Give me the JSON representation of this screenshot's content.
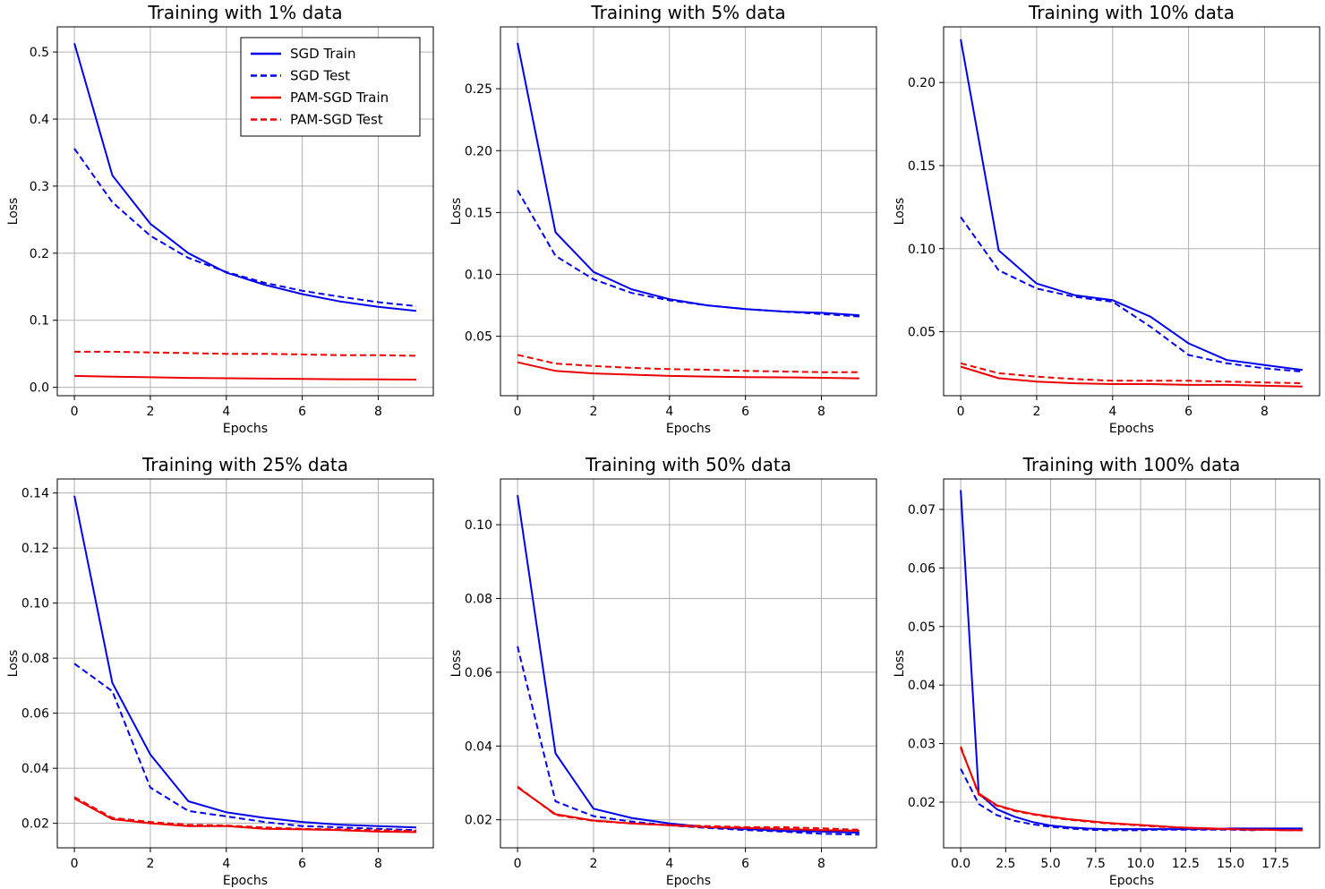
{
  "legend": {
    "entries": [
      {
        "label": "SGD Train",
        "color": "#0000ee",
        "dash": "solid"
      },
      {
        "label": "SGD Test",
        "color": "#0000ee",
        "dash": "dashed"
      },
      {
        "label": "PAM-SGD Train",
        "color": "#ee0000",
        "dash": "solid"
      },
      {
        "label": "PAM-SGD Test",
        "color": "#ee0000",
        "dash": "dashed"
      }
    ],
    "placement": "top-right of first chart"
  },
  "chart_data": [
    {
      "type": "line",
      "title": "Training with 1% data",
      "xlabel": "Epochs",
      "ylabel": "Loss",
      "grid": true,
      "xlim": [
        -0.45,
        9.45
      ],
      "ylim": [
        -0.0125,
        0.5375
      ],
      "xticks": [
        0,
        2,
        4,
        6,
        8
      ],
      "xtick_labels": [
        "0",
        "2",
        "4",
        "6",
        "8"
      ],
      "yticks": [
        0.0,
        0.1,
        0.2,
        0.3,
        0.4,
        0.5
      ],
      "ytick_labels": [
        "0.0",
        "0.1",
        "0.2",
        "0.3",
        "0.4",
        "0.5"
      ],
      "x": [
        0,
        1,
        2,
        3,
        4,
        5,
        6,
        7,
        8,
        9
      ],
      "series": [
        {
          "name": "SGD Train",
          "values": [
            0.513,
            0.316,
            0.244,
            0.2,
            0.171,
            0.153,
            0.139,
            0.128,
            0.12,
            0.114
          ]
        },
        {
          "name": "SGD Test",
          "values": [
            0.356,
            0.276,
            0.226,
            0.193,
            0.172,
            0.156,
            0.144,
            0.135,
            0.127,
            0.121
          ]
        },
        {
          "name": "PAM-SGD Train",
          "values": [
            0.017,
            0.016,
            0.015,
            0.014,
            0.0135,
            0.013,
            0.0125,
            0.012,
            0.0118,
            0.0115
          ]
        },
        {
          "name": "PAM-SGD Test",
          "values": [
            0.053,
            0.053,
            0.052,
            0.051,
            0.05,
            0.05,
            0.049,
            0.048,
            0.048,
            0.047
          ]
        }
      ],
      "show_legend": true
    },
    {
      "type": "line",
      "title": "Training with 5% data",
      "xlabel": "Epochs",
      "ylabel": "Loss",
      "grid": true,
      "xlim": [
        -0.45,
        9.45
      ],
      "ylim": [
        0.002,
        0.3
      ],
      "xticks": [
        0,
        2,
        4,
        6,
        8
      ],
      "xtick_labels": [
        "0",
        "2",
        "4",
        "6",
        "8"
      ],
      "yticks": [
        0.05,
        0.1,
        0.15,
        0.2,
        0.25
      ],
      "ytick_labels": [
        "0.05",
        "0.10",
        "0.15",
        "0.20",
        "0.25"
      ],
      "x": [
        0,
        1,
        2,
        3,
        4,
        5,
        6,
        7,
        8,
        9
      ],
      "series": [
        {
          "name": "SGD Train",
          "values": [
            0.287,
            0.134,
            0.102,
            0.088,
            0.08,
            0.075,
            0.072,
            0.07,
            0.069,
            0.067
          ]
        },
        {
          "name": "SGD Test",
          "values": [
            0.168,
            0.115,
            0.096,
            0.085,
            0.079,
            0.075,
            0.072,
            0.07,
            0.068,
            0.066
          ]
        },
        {
          "name": "PAM-SGD Train",
          "values": [
            0.029,
            0.022,
            0.02,
            0.019,
            0.018,
            0.0175,
            0.017,
            0.0168,
            0.0165,
            0.016
          ]
        },
        {
          "name": "PAM-SGD Test",
          "values": [
            0.035,
            0.028,
            0.026,
            0.0245,
            0.0235,
            0.023,
            0.022,
            0.0215,
            0.021,
            0.021
          ]
        }
      ],
      "show_legend": false
    },
    {
      "type": "line",
      "title": "Training with 10% data",
      "xlabel": "Epochs",
      "ylabel": "Loss",
      "grid": true,
      "xlim": [
        -0.45,
        9.45
      ],
      "ylim": [
        0.0115,
        0.2335
      ],
      "xticks": [
        0,
        2,
        4,
        6,
        8
      ],
      "xtick_labels": [
        "0",
        "2",
        "4",
        "6",
        "8"
      ],
      "yticks": [
        0.05,
        0.1,
        0.15,
        0.2
      ],
      "ytick_labels": [
        "0.05",
        "0.10",
        "0.15",
        "0.20"
      ],
      "x": [
        0,
        1,
        2,
        3,
        4,
        5,
        6,
        7,
        8,
        9
      ],
      "series": [
        {
          "name": "SGD Train",
          "values": [
            0.226,
            0.099,
            0.079,
            0.072,
            0.069,
            0.059,
            0.043,
            0.033,
            0.03,
            0.027
          ]
        },
        {
          "name": "SGD Test",
          "values": [
            0.119,
            0.087,
            0.076,
            0.071,
            0.068,
            0.053,
            0.036,
            0.031,
            0.028,
            0.026
          ]
        },
        {
          "name": "PAM-SGD Train",
          "values": [
            0.029,
            0.022,
            0.02,
            0.019,
            0.0185,
            0.0185,
            0.018,
            0.018,
            0.0175,
            0.017
          ]
        },
        {
          "name": "PAM-SGD Test",
          "values": [
            0.031,
            0.025,
            0.023,
            0.0215,
            0.0205,
            0.0205,
            0.0205,
            0.02,
            0.0195,
            0.019
          ]
        }
      ],
      "show_legend": false
    },
    {
      "type": "line",
      "title": "Training with 25% data",
      "xlabel": "Epochs",
      "ylabel": "Loss",
      "grid": true,
      "xlim": [
        -0.45,
        9.45
      ],
      "ylim": [
        0.0111,
        0.1451
      ],
      "xticks": [
        0,
        2,
        4,
        6,
        8
      ],
      "xtick_labels": [
        "0",
        "2",
        "4",
        "6",
        "8"
      ],
      "yticks": [
        0.02,
        0.04,
        0.06,
        0.08,
        0.1,
        0.12,
        0.14
      ],
      "ytick_labels": [
        "0.02",
        "0.04",
        "0.06",
        "0.08",
        "0.10",
        "0.12",
        "0.14"
      ],
      "x": [
        0,
        1,
        2,
        3,
        4,
        5,
        6,
        7,
        8,
        9
      ],
      "series": [
        {
          "name": "SGD Train",
          "values": [
            0.139,
            0.071,
            0.045,
            0.028,
            0.024,
            0.022,
            0.0205,
            0.0195,
            0.019,
            0.0185
          ]
        },
        {
          "name": "SGD Test",
          "values": [
            0.078,
            0.068,
            0.033,
            0.0245,
            0.0225,
            0.0205,
            0.019,
            0.0185,
            0.018,
            0.0175
          ]
        },
        {
          "name": "PAM-SGD Train",
          "values": [
            0.029,
            0.0215,
            0.02,
            0.019,
            0.019,
            0.018,
            0.0178,
            0.0175,
            0.017,
            0.0168
          ]
        },
        {
          "name": "PAM-SGD Test",
          "values": [
            0.0295,
            0.022,
            0.0205,
            0.0195,
            0.0192,
            0.0185,
            0.018,
            0.0178,
            0.0175,
            0.0172
          ]
        }
      ],
      "show_legend": false
    },
    {
      "type": "line",
      "title": "Training with 50% data",
      "xlabel": "Epochs",
      "ylabel": "Loss",
      "grid": true,
      "xlim": [
        -0.45,
        9.45
      ],
      "ylim": [
        0.0124,
        0.1124
      ],
      "xticks": [
        0,
        2,
        4,
        6,
        8
      ],
      "xtick_labels": [
        "0",
        "2",
        "4",
        "6",
        "8"
      ],
      "yticks": [
        0.02,
        0.04,
        0.06,
        0.08,
        0.1
      ],
      "ytick_labels": [
        "0.02",
        "0.04",
        "0.06",
        "0.08",
        "0.10"
      ],
      "x": [
        0,
        1,
        2,
        3,
        4,
        5,
        6,
        7,
        8,
        9
      ],
      "series": [
        {
          "name": "SGD Train",
          "values": [
            0.108,
            0.038,
            0.023,
            0.0205,
            0.019,
            0.018,
            0.0175,
            0.017,
            0.0168,
            0.0165
          ]
        },
        {
          "name": "SGD Test",
          "values": [
            0.067,
            0.025,
            0.021,
            0.0195,
            0.0185,
            0.0178,
            0.0172,
            0.0168,
            0.0162,
            0.016
          ]
        },
        {
          "name": "PAM-SGD Train",
          "values": [
            0.0288,
            0.0215,
            0.0198,
            0.019,
            0.0185,
            0.018,
            0.0178,
            0.0175,
            0.0172,
            0.017
          ]
        },
        {
          "name": "PAM-SGD Test",
          "values": [
            0.029,
            0.0213,
            0.0197,
            0.019,
            0.0186,
            0.0183,
            0.018,
            0.018,
            0.0177,
            0.0173
          ]
        }
      ],
      "show_legend": false
    },
    {
      "type": "line",
      "title": "Training with 100% data",
      "xlabel": "Epochs",
      "ylabel": "Loss",
      "grid": true,
      "xlim": [
        -0.95,
        19.95
      ],
      "ylim": [
        0.0122,
        0.0752
      ],
      "xticks": [
        0,
        2.5,
        5,
        7.5,
        10,
        12.5,
        15,
        17.5
      ],
      "xtick_labels": [
        "0.0",
        "2.5",
        "5.0",
        "7.5",
        "10.0",
        "12.5",
        "15.0",
        "17.5"
      ],
      "yticks": [
        0.02,
        0.03,
        0.04,
        0.05,
        0.06,
        0.07
      ],
      "ytick_labels": [
        "0.02",
        "0.03",
        "0.04",
        "0.05",
        "0.06",
        "0.07"
      ],
      "x": [
        0,
        1,
        2,
        3,
        4,
        5,
        6,
        7,
        8,
        9,
        10,
        11,
        12,
        13,
        14,
        15,
        16,
        17,
        18,
        19
      ],
      "series": [
        {
          "name": "SGD Train",
          "values": [
            0.0733,
            0.0215,
            0.0188,
            0.0175,
            0.0166,
            0.016,
            0.0157,
            0.0155,
            0.0154,
            0.0154,
            0.0154,
            0.0154,
            0.0154,
            0.0154,
            0.0154,
            0.0155,
            0.0155,
            0.0155,
            0.0155,
            0.0155
          ]
        },
        {
          "name": "SGD Test",
          "values": [
            0.0257,
            0.0197,
            0.0178,
            0.0168,
            0.0162,
            0.0158,
            0.0155,
            0.0153,
            0.0152,
            0.0152,
            0.0152,
            0.0153,
            0.0153,
            0.0153,
            0.0153,
            0.0153,
            0.0152,
            0.0153,
            0.0154,
            0.0154
          ]
        },
        {
          "name": "PAM-SGD Train",
          "values": [
            0.0293,
            0.0215,
            0.0195,
            0.0186,
            0.018,
            0.0175,
            0.0171,
            0.0168,
            0.0165,
            0.0163,
            0.0161,
            0.0159,
            0.0157,
            0.0156,
            0.0155,
            0.0154,
            0.0153,
            0.0153,
            0.0152,
            0.0152
          ]
        },
        {
          "name": "PAM-SGD Test",
          "values": [
            0.0295,
            0.0213,
            0.0194,
            0.0185,
            0.0179,
            0.0174,
            0.017,
            0.0167,
            0.0164,
            0.0162,
            0.016,
            0.0158,
            0.0157,
            0.0155,
            0.0154,
            0.0154,
            0.0153,
            0.0153,
            0.0152,
            0.0152
          ]
        }
      ],
      "show_legend": false
    }
  ]
}
